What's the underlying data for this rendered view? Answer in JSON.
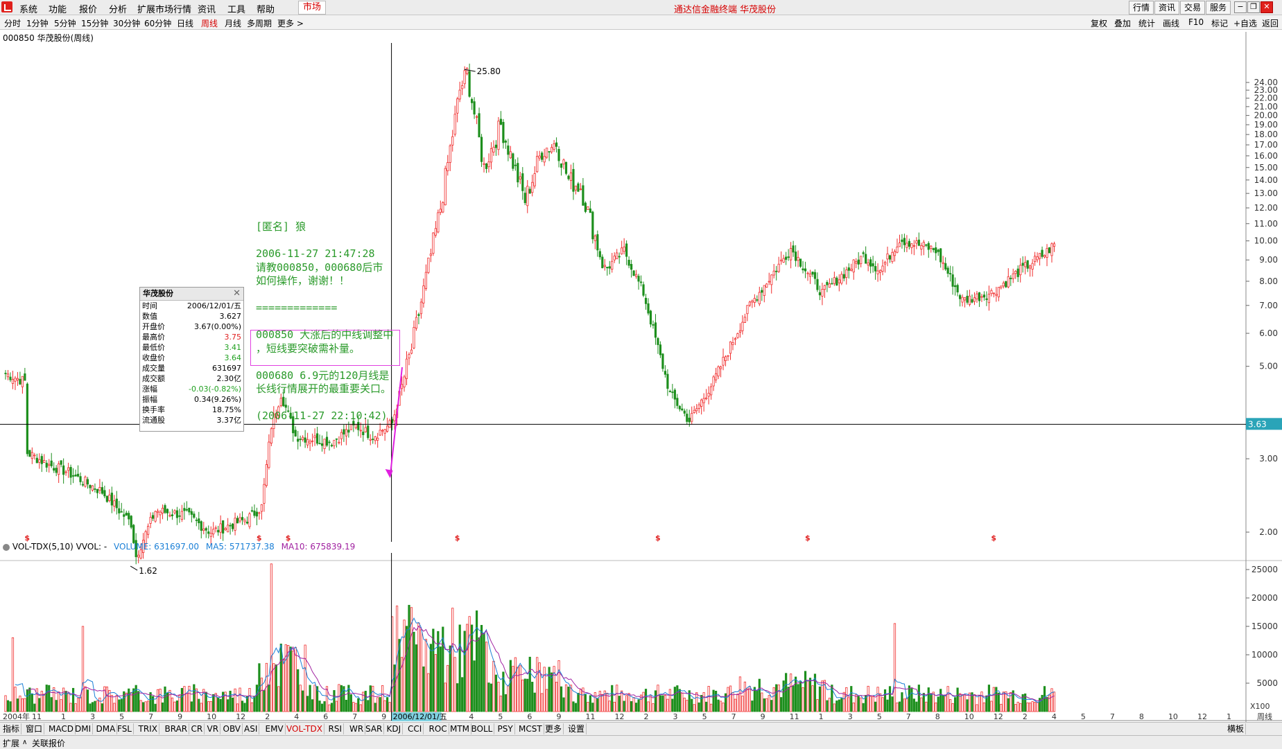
{
  "menu": {
    "items": [
      "系统",
      "功能",
      "报价",
      "分析",
      "扩展市场行情",
      "资讯",
      "工具",
      "帮助"
    ],
    "market_label": "市场",
    "title": "通达信金融终端 华茂股份",
    "right_buttons": [
      "行情",
      "资讯",
      "交易",
      "服务"
    ]
  },
  "periods": {
    "items": [
      "分时",
      "1分钟",
      "5分钟",
      "15分钟",
      "30分钟",
      "60分钟",
      "日线",
      "周线",
      "月线",
      "多周期",
      "更多 >"
    ],
    "active": "周线",
    "right_items": [
      "复权",
      "叠加",
      "统计",
      "画线",
      "F10",
      "标记",
      "+自选",
      "返回"
    ]
  },
  "stock": {
    "header": "000850 华茂股份(周线)"
  },
  "tooltip": {
    "title": "华茂股份",
    "rows": [
      {
        "k": "时间",
        "v": "2006/12/01/五"
      },
      {
        "k": "数值",
        "v": "3.627"
      },
      {
        "k": "开盘价",
        "v": "3.67(0.00%)"
      },
      {
        "k": "最高价",
        "v": "3.75"
      },
      {
        "k": "最低价",
        "v": "3.41"
      },
      {
        "k": "收盘价",
        "v": "3.64"
      },
      {
        "k": "成交量",
        "v": "631697"
      },
      {
        "k": "成交额",
        "v": "2.30亿"
      },
      {
        "k": "涨幅",
        "v": "-0.03(-0.82%)"
      },
      {
        "k": "振幅",
        "v": "0.34(9.26%)"
      },
      {
        "k": "换手率",
        "v": "18.75%"
      },
      {
        "k": "流通股",
        "v": "3.37亿"
      }
    ],
    "colors": {
      "最高价": "#e02020",
      "最低价": "#20a020",
      "收盘价": "#20a020",
      "涨幅": "#20a020"
    }
  },
  "note": {
    "text": "[匿名] 狼\n\n2006-11-27 21:47:28\n请教000850，000680后市\n如何操作，谢谢！！\n\n=============\n\n000850 大涨后的中线调整中\n，短线要突破需补量。\n\n000680 6.9元的120月线是\n长线行情展开的最重要关口。\n\n(2006-11-27 22:10:42)"
  },
  "volume_legend": {
    "name": "VOL-TDX(5,10) VVOL: -",
    "volume": "VOLUME: 631697.00",
    "ma5": "MA5: 571737.38",
    "ma10": "MA10: 675839.19"
  },
  "bottom_tabs": [
    "指标",
    "窗口",
    "MACD",
    "DMI",
    "DMA",
    "FSL",
    "TRIX",
    "BRAR",
    "CR",
    "VR",
    "OBV",
    "ASI",
    "EMV",
    "VOL-TDX",
    "RSI",
    "WR",
    "SAR",
    "KDJ",
    "CCI",
    "ROC",
    "MTM",
    "BOLL",
    "PSY",
    "MCST",
    "更多",
    "设置"
  ],
  "bottom_active": "VOL-TDX",
  "bottom_right": "横板",
  "status": [
    "扩展",
    "关联报价"
  ],
  "chart_data": {
    "type": "candlestick",
    "price_axis": {
      "ticks": [
        24,
        23,
        22,
        21,
        20,
        19,
        18,
        17,
        16,
        15,
        14,
        13,
        12,
        11,
        10,
        9,
        8,
        7,
        6,
        5,
        3,
        2
      ],
      "tick_labels": [
        "24.00",
        "23.00",
        "22.00",
        "21.00",
        "20.00",
        "19.00",
        "18.00",
        "17.00",
        "16.00",
        "15.00",
        "14.00",
        "13.00",
        "12.00",
        "11.00",
        "10.00",
        "9.00",
        "8.00",
        "7.00",
        "6.00",
        "5.00",
        "3.00",
        "2.00"
      ],
      "scale": "log",
      "current": "3.63"
    },
    "annotations": {
      "high": "25.80",
      "low": "1.62",
      "selected_date": "2006/12/01/五"
    },
    "volume_axis": {
      "ticks": [
        25000,
        20000,
        15000,
        10000,
        5000
      ],
      "tick_labels": [
        "25000",
        "20000",
        "15000",
        "10000",
        "5000"
      ],
      "unit": "X100"
    },
    "time_axis": {
      "labels": [
        "2004年",
        "11",
        "1",
        "3",
        "5",
        "7",
        "9",
        "10",
        "12",
        "2",
        "4",
        "6",
        "7",
        "9",
        "10",
        "2006/12/01/五",
        "4",
        "5",
        "6",
        "9",
        "11",
        "12",
        "2",
        "3",
        "5",
        "7",
        "9",
        "11",
        "1",
        "3",
        "5",
        "7",
        "8",
        "10",
        "12",
        "2",
        "4",
        "5",
        "7",
        "8",
        "10",
        "12",
        "1"
      ],
      "period_label": "周线"
    },
    "anchors": [
      [
        0,
        4.8
      ],
      [
        8,
        4.6
      ],
      [
        9,
        3.1
      ],
      [
        18,
        2.9
      ],
      [
        25,
        2.8
      ],
      [
        40,
        2.5
      ],
      [
        52,
        2.1
      ],
      [
        54,
        1.75
      ],
      [
        62,
        2.25
      ],
      [
        75,
        2.2
      ],
      [
        85,
        2.0
      ],
      [
        100,
        2.15
      ],
      [
        106,
        2.3
      ],
      [
        110,
        3.6
      ],
      [
        114,
        4.3
      ],
      [
        120,
        3.4
      ],
      [
        135,
        3.3
      ],
      [
        145,
        3.6
      ],
      [
        152,
        3.4
      ],
      [
        160,
        3.65
      ],
      [
        168,
        5.5
      ],
      [
        180,
        12
      ],
      [
        188,
        23
      ],
      [
        191,
        25.3
      ],
      [
        198,
        15
      ],
      [
        205,
        19
      ],
      [
        215,
        12.5
      ],
      [
        222,
        16.5
      ],
      [
        228,
        17.2
      ],
      [
        233,
        14
      ],
      [
        238,
        13.5
      ],
      [
        248,
        8.5
      ],
      [
        256,
        9.5
      ],
      [
        264,
        7.5
      ],
      [
        275,
        4.3
      ],
      [
        283,
        3.7
      ],
      [
        293,
        4.6
      ],
      [
        308,
        7.0
      ],
      [
        325,
        9.6
      ],
      [
        338,
        7.5
      ],
      [
        355,
        9.2
      ],
      [
        362,
        8.5
      ],
      [
        370,
        10.1
      ],
      [
        385,
        9.5
      ],
      [
        396,
        7.2
      ],
      [
        408,
        7.5
      ],
      [
        420,
        8.5
      ],
      [
        430,
        9.3
      ],
      [
        434,
        9.8
      ]
    ]
  }
}
